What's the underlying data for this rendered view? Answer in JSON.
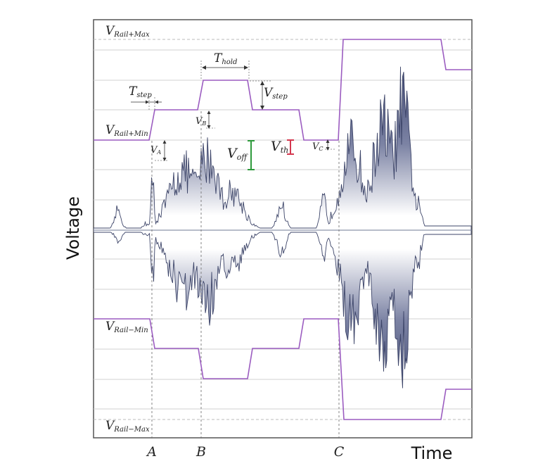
{
  "axes": {
    "y_title": "Voltage",
    "x_title": "Time"
  },
  "rails": {
    "rail_plus_max": "Rail+Max",
    "rail_plus_min": "Rail+Min",
    "rail_minus_min": "Rail−Min",
    "rail_minus_max": "Rail−Max",
    "v_prefix": "V",
    "t_prefix": "T"
  },
  "annotations": {
    "t_step": "step",
    "t_hold": "hold",
    "v_step": "step",
    "v_a": "A",
    "v_b": "B",
    "v_c": "C",
    "v_off": "off",
    "v_th": "th"
  },
  "markers": {
    "a": "A",
    "b": "B",
    "c": "C"
  },
  "colors": {
    "rail": "#9b5cc0",
    "signal_dark": "#4b5378",
    "signal_light": "#ffffff",
    "grid": "#d0d0d0",
    "v_off_bracket": "#2e9a3c",
    "v_th_bracket": "#d4384f",
    "frame": "#555555"
  }
}
